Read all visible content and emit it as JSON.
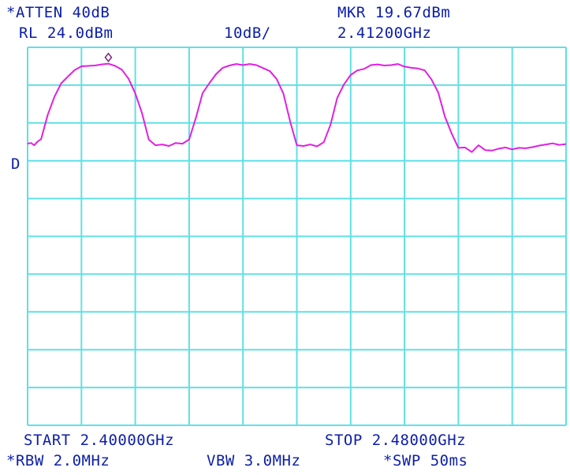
{
  "header": {
    "atten": "*ATTEN 40dB",
    "ref_level": "RL 24.0dBm",
    "scale": "10dB/",
    "marker_level": "MKR 19.67dBm",
    "marker_freq": "2.41200GHz",
    "detector_mark": "D"
  },
  "footer": {
    "start": "START 2.40000GHz",
    "stop": "STOP 2.48000GHz",
    "rbw": "*RBW 2.0MHz",
    "vbw": "VBW 3.0MHz",
    "sweep": "*SWP 50ms"
  },
  "colors": {
    "grid": "#5fe0e6",
    "trace": "#e020e0",
    "text": "#0c1ea8",
    "marker": "#7a2a7a"
  },
  "chart_data": {
    "type": "line",
    "x_unit": "GHz",
    "y_unit": "dBm",
    "xlim": [
      2.4,
      2.48
    ],
    "ylim": [
      -76,
      24
    ],
    "ref_level": 24,
    "db_per_div": 10,
    "grid": true,
    "marker": {
      "x": 2.412,
      "y": 19.67
    },
    "series": [
      {
        "x": [
          2.4,
          2.4005,
          2.401,
          2.4015,
          2.402,
          2.403,
          2.404,
          2.405,
          2.406,
          2.407,
          2.408,
          2.409,
          2.41,
          2.411,
          2.412,
          2.413,
          2.414,
          2.415,
          2.416,
          2.417,
          2.418,
          2.419,
          2.42,
          2.421,
          2.422,
          2.423,
          2.424,
          2.4245,
          2.425,
          2.426,
          2.427,
          2.428,
          2.429,
          2.43,
          2.431,
          2.432,
          2.433,
          2.434,
          2.435,
          2.436,
          2.437,
          2.438,
          2.439,
          2.44,
          2.441,
          2.442,
          2.443,
          2.444,
          2.445,
          2.446,
          2.447,
          2.448,
          2.449,
          2.45,
          2.451,
          2.452,
          2.453,
          2.454,
          2.455,
          2.456,
          2.457,
          2.458,
          2.459,
          2.46,
          2.461,
          2.462,
          2.463,
          2.464,
          2.465,
          2.466,
          2.467,
          2.468,
          2.469,
          2.47,
          2.471,
          2.472,
          2.473,
          2.474,
          2.475,
          2.476,
          2.477,
          2.478,
          2.479,
          2.48
        ],
        "y": [
          -1.5,
          -1.3,
          -1.9,
          -0.9,
          -0.3,
          6.2,
          11.0,
          14.5,
          16.3,
          18.0,
          19.0,
          19.1,
          19.2,
          19.5,
          19.67,
          19.1,
          18.1,
          15.7,
          11.8,
          6.6,
          -0.4,
          -1.9,
          -1.7,
          -2.1,
          -1.3,
          -1.5,
          -0.4,
          2.5,
          5.3,
          11.9,
          14.5,
          16.9,
          18.6,
          19.2,
          19.6,
          19.3,
          19.6,
          19.3,
          18.5,
          17.7,
          15.6,
          11.8,
          4.4,
          -1.9,
          -2.1,
          -1.7,
          -2.2,
          -1.1,
          3.5,
          10.6,
          14.2,
          16.7,
          17.9,
          18.3,
          19.3,
          19.5,
          19.2,
          19.3,
          19.6,
          18.9,
          18.6,
          18.4,
          17.9,
          15.5,
          12.1,
          5.7,
          1.2,
          -2.6,
          -2.5,
          -3.7,
          -1.9,
          -3.2,
          -3.3,
          -2.8,
          -2.5,
          -3.0,
          -2.6,
          -2.7,
          -2.4,
          -2.0,
          -1.7,
          -1.4,
          -1.8,
          -1.6
        ]
      }
    ]
  }
}
